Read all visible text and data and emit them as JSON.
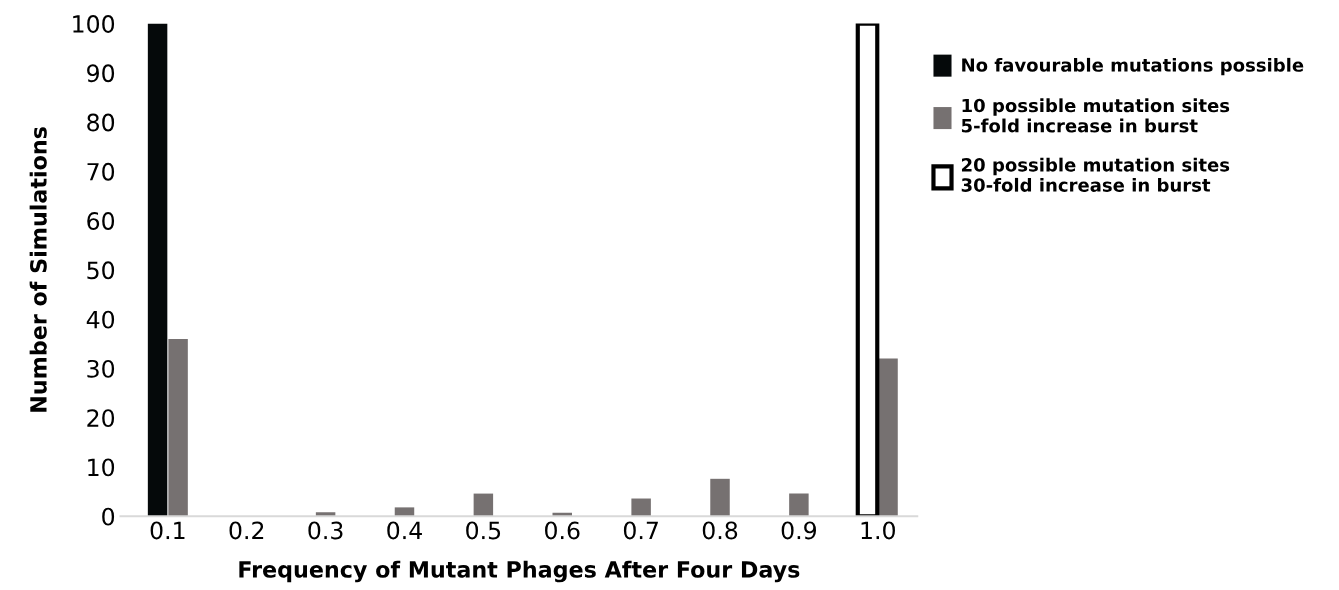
{
  "chart_data": {
    "type": "bar",
    "xlabel": "Frequency of Mutant Phages After Four Days",
    "ylabel": "Number of Simulations",
    "categories": [
      "0.1",
      "0.2",
      "0.3",
      "0.4",
      "0.5",
      "0.6",
      "0.7",
      "0.8",
      "0.9",
      "1.0"
    ],
    "series": [
      {
        "name": "No favourable mutations possible",
        "color": "#05090a",
        "values": [
          100,
          null,
          null,
          null,
          null,
          null,
          null,
          null,
          null,
          null
        ]
      },
      {
        "name": "10 possible mutation sites\n5-fold increase in burst",
        "color": "#767171",
        "values": [
          36,
          0,
          0.8,
          1.8,
          4.6,
          0.7,
          3.6,
          7.6,
          4.6,
          32
        ]
      },
      {
        "name": "20 possible mutation sites\n30-fold increase in burst",
        "color": "#ffffff",
        "values": [
          null,
          null,
          null,
          null,
          null,
          null,
          null,
          null,
          null,
          100
        ]
      }
    ],
    "ylim": [
      0,
      100
    ],
    "yticks": [
      0,
      10,
      20,
      30,
      40,
      50,
      60,
      70,
      80,
      90,
      100
    ],
    "grid": false,
    "legend": "right"
  }
}
